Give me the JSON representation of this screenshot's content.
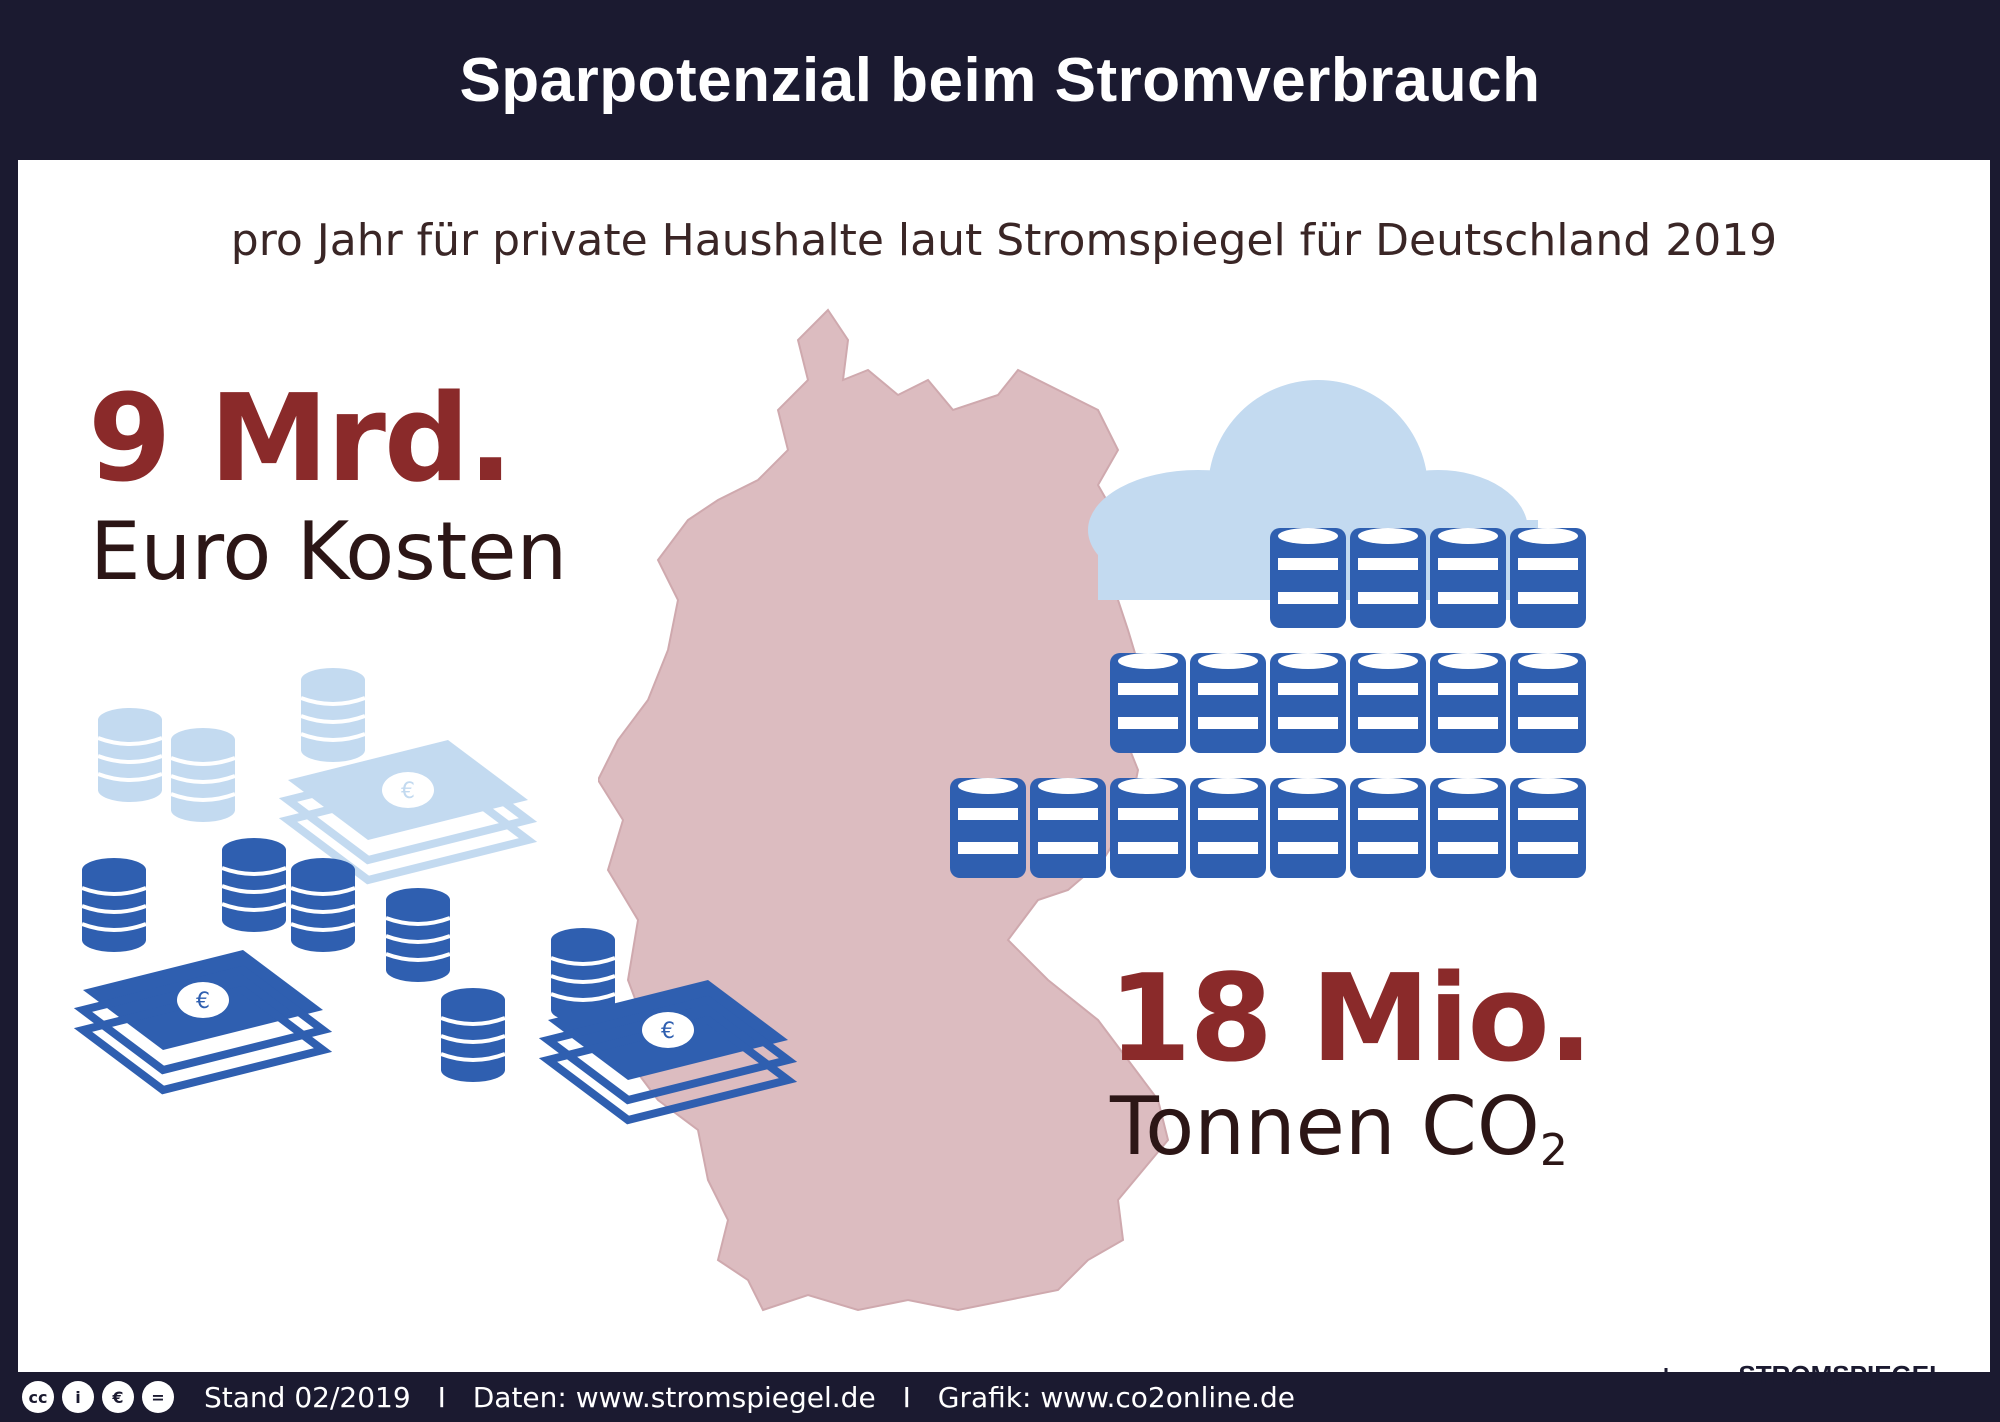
{
  "title": "Sparpotenzial beim Stromverbrauch",
  "subtitle": "pro Jahr für private Haushalte laut Stromspiegel für Deutschland 2019",
  "left_stat": {
    "value": "9 Mrd.",
    "label": "Euro Kosten"
  },
  "right_stat": {
    "value": "18 Mio.",
    "label_main": "Tonnen CO",
    "label_sub": "2"
  },
  "footer": {
    "license_icons": [
      "cc",
      "i",
      "€",
      "="
    ],
    "stand": "Stand 02/2019",
    "separator": "I",
    "daten": "Daten: www.stromspiegel.de",
    "grafik": "Grafik: www.co2online.de"
  },
  "logo_text": "STROMSPIEGEL",
  "colors": {
    "dark_navy": "#1b1a30",
    "accent_red": "#8a2a2a",
    "map_pink": "#dcbcc0",
    "blue": "#2f5fb0",
    "light_blue": "#c3daf0"
  },
  "icons": [
    "euro-banknote-icon",
    "coin-stack-icon",
    "oil-barrel-icon",
    "cloud-icon",
    "plug-icon"
  ]
}
